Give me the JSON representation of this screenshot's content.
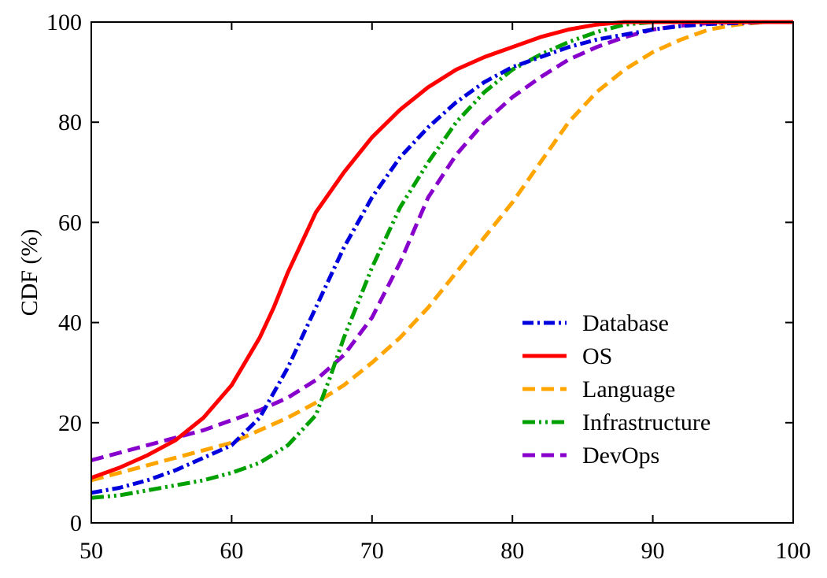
{
  "chart_data": {
    "type": "line",
    "title": "",
    "xlabel": "",
    "ylabel": "CDF (%)",
    "xlim": [
      50,
      100
    ],
    "ylim": [
      0,
      100
    ],
    "xticks": [
      "50",
      "60",
      "70",
      "80",
      "90",
      "100"
    ],
    "yticks": [
      "0",
      "20",
      "40",
      "60",
      "80",
      "100"
    ],
    "grid": false,
    "legend_position": "bottom-right",
    "series": [
      {
        "name": "Database",
        "color": "#0000dd",
        "dash": "dash-dot",
        "x": [
          50,
          52,
          54,
          56,
          58,
          60,
          62,
          64,
          66,
          68,
          70,
          72,
          74,
          76,
          78,
          80,
          82,
          84,
          86,
          88,
          90,
          92,
          94,
          96,
          98,
          100
        ],
        "y": [
          6,
          7,
          8.5,
          10.5,
          13,
          15.5,
          21,
          31,
          43,
          55,
          65,
          73,
          79,
          84,
          88,
          91,
          93,
          95,
          96.5,
          97.5,
          98.5,
          99.2,
          99.6,
          99.8,
          100,
          100
        ]
      },
      {
        "name": "OS",
        "color": "#ff0000",
        "dash": "solid",
        "x": [
          50,
          52,
          54,
          56,
          58,
          60,
          62,
          63,
          64,
          66,
          68,
          70,
          72,
          74,
          76,
          78,
          80,
          82,
          84,
          86,
          88,
          90,
          92,
          94,
          96,
          98,
          100
        ],
        "y": [
          9,
          11,
          13.5,
          16.5,
          21,
          27.5,
          37,
          43,
          50,
          62,
          70,
          77,
          82.5,
          87,
          90.5,
          93,
          95,
          97,
          98.5,
          99.5,
          100,
          100,
          100,
          100,
          100,
          100,
          100
        ]
      },
      {
        "name": "Language",
        "color": "#ffa500",
        "dash": "dash",
        "x": [
          50,
          52,
          54,
          56,
          58,
          60,
          62,
          64,
          66,
          68,
          70,
          72,
          74,
          76,
          78,
          80,
          82,
          84,
          86,
          88,
          90,
          92,
          94,
          96,
          98,
          100
        ],
        "y": [
          8.5,
          10,
          11.5,
          13,
          14.5,
          16,
          18.5,
          21,
          24,
          27.5,
          32,
          37,
          43,
          50,
          57,
          64,
          72,
          80,
          86,
          90.5,
          94,
          96.5,
          98.5,
          99.5,
          100,
          100
        ]
      },
      {
        "name": "Infrastructure",
        "color": "#00a000",
        "dash": "dash-dot-dot",
        "x": [
          50,
          52,
          54,
          56,
          58,
          60,
          62,
          64,
          66,
          67,
          68,
          69,
          70,
          72,
          74,
          76,
          78,
          80,
          82,
          84,
          86,
          88,
          90,
          92,
          94,
          96,
          98,
          100
        ],
        "y": [
          5,
          5.5,
          6.5,
          7.5,
          8.5,
          10,
          12,
          15.5,
          21.5,
          29,
          37,
          44,
          51,
          63,
          72,
          80,
          86,
          90.5,
          93.5,
          96,
          98,
          99.5,
          100,
          100,
          100,
          100,
          100,
          100
        ]
      },
      {
        "name": "DevOps",
        "color": "#8800cc",
        "dash": "dash",
        "x": [
          50,
          52,
          54,
          56,
          58,
          60,
          62,
          64,
          66,
          68,
          70,
          72,
          74,
          76,
          78,
          80,
          82,
          84,
          86,
          88,
          90,
          92,
          94,
          96,
          98,
          100
        ],
        "y": [
          12.5,
          14,
          15.5,
          17,
          18.5,
          20.5,
          22.5,
          25,
          28.5,
          33.5,
          41,
          52,
          65,
          73.5,
          80,
          85,
          89,
          92.5,
          95,
          97,
          98.5,
          99.3,
          99.8,
          100,
          100,
          100
        ]
      }
    ],
    "annotations": []
  }
}
